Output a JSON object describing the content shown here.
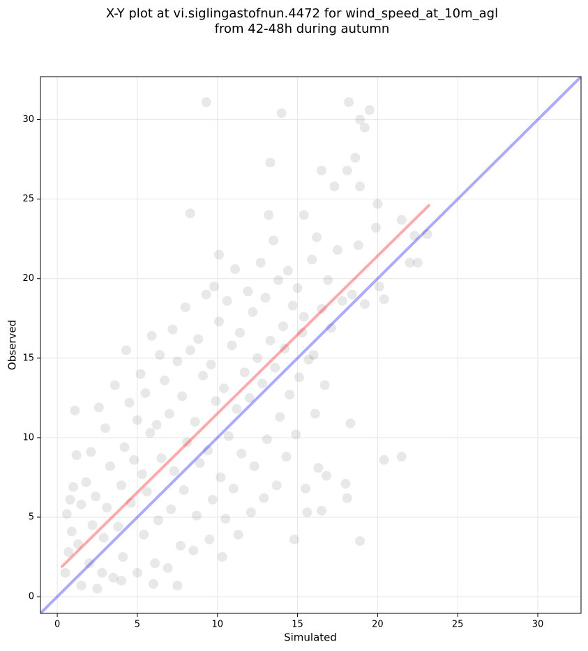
{
  "chart_data": {
    "type": "scatter",
    "title": [
      "X-Y plot at vi.siglingastofnun.4472 for wind_speed_at_10m_agl",
      "from 42-48h during autumn"
    ],
    "xlabel": "Simulated",
    "ylabel": "Observed",
    "xlim": [
      -1.05,
      32.7
    ],
    "ylim": [
      -1.05,
      32.7
    ],
    "xticks": [
      0,
      5,
      10,
      15,
      20,
      25,
      30
    ],
    "yticks": [
      0,
      5,
      10,
      15,
      20,
      25,
      30
    ],
    "grid": true,
    "series": [
      {
        "color": "#000000",
        "x": [
          9.3,
          14,
          18.2,
          19.5,
          18.9,
          19.2,
          13.3,
          16.5,
          18.1,
          18.6,
          17.3,
          18.9,
          8.3,
          13.2,
          15.4,
          20,
          21.5,
          22.3,
          23.1,
          22,
          22.5,
          20.4,
          20.4,
          21.5,
          18.9,
          14.8,
          18.3,
          18,
          18.1,
          1.1,
          4.3,
          10.1,
          0.5,
          0.7,
          0.9,
          0.6,
          0.8,
          1.0,
          1.3,
          1.5,
          1.2,
          1.8,
          2.0,
          2.2,
          2.4,
          2.1,
          2.6,
          2.9,
          3.1,
          3.3,
          3.0,
          3.6,
          3.5,
          3.8,
          4.0,
          4.2,
          4.5,
          4.1,
          4.6,
          4.8,
          5.0,
          5.2,
          5.0,
          5.4,
          5.6,
          5.3,
          5.8,
          5.5,
          5.9,
          6.1,
          6.3,
          6.5,
          6.2,
          6.7,
          6.4,
          6.9,
          7.1,
          7.3,
          7.0,
          7.5,
          7.2,
          7.7,
          7.9,
          8.1,
          7.8,
          8.3,
          8.0,
          8.5,
          8.7,
          8.9,
          8.6,
          9.1,
          8.8,
          9.3,
          9.5,
          9.7,
          9.4,
          9.9,
          9.6,
          10.1,
          9.8,
          10.3,
          10.5,
          10.2,
          10.7,
          10.4,
          10.9,
          10.6,
          11.1,
          11.3,
          11.0,
          11.5,
          11.2,
          11.7,
          11.4,
          11.9,
          12.1,
          12.3,
          12.0,
          12.5,
          12.2,
          12.7,
          12.9,
          13.1,
          12.8,
          13.3,
          13.0,
          13.5,
          13.7,
          13.9,
          13.6,
          14.1,
          13.8,
          14.3,
          14.5,
          14.2,
          14.7,
          14.4,
          14.9,
          15.1,
          15.3,
          15.0,
          15.5,
          15.7,
          15.4,
          15.9,
          16.1,
          16.3,
          16.0,
          16.5,
          16.2,
          16.7,
          16.9,
          17.1,
          17.5,
          17.8,
          18.4,
          18.8,
          19.2,
          19.9,
          20.1,
          16.5,
          16.8,
          15.6,
          6.0,
          7.5,
          2.5,
          4.0,
          1.5,
          2.8
        ],
        "values": [
          31.1,
          30.4,
          31.1,
          30.6,
          30,
          29.5,
          27.3,
          26.8,
          26.8,
          27.6,
          25.8,
          25.8,
          24.1,
          24,
          24,
          24.7,
          23.7,
          22.7,
          22.8,
          21,
          21,
          18.7,
          8.6,
          8.8,
          3.5,
          3.6,
          10.9,
          7.1,
          6.2,
          11.7,
          15.5,
          21.5,
          1.5,
          2.8,
          4.1,
          5.2,
          6.1,
          6.9,
          3.3,
          5.8,
          8.9,
          7.2,
          2.1,
          4.5,
          6.3,
          9.1,
          11.9,
          3.7,
          5.6,
          8.2,
          10.6,
          13.3,
          1.2,
          4.4,
          7.0,
          9.4,
          12.2,
          2.5,
          5.9,
          8.6,
          11.1,
          14.0,
          1.5,
          3.9,
          6.6,
          7.7,
          10.3,
          12.8,
          16.4,
          2.1,
          4.8,
          8.7,
          10.8,
          13.6,
          15.2,
          1.8,
          5.5,
          7.9,
          11.5,
          14.8,
          16.8,
          3.2,
          6.7,
          9.7,
          12.6,
          15.5,
          18.2,
          2.9,
          5.1,
          8.4,
          11.0,
          13.9,
          16.2,
          19.0,
          3.6,
          6.1,
          9.2,
          12.3,
          14.6,
          17.3,
          19.5,
          2.5,
          4.9,
          7.5,
          10.1,
          13.1,
          15.8,
          18.6,
          20.6,
          3.9,
          6.8,
          9.0,
          11.8,
          14.1,
          16.6,
          19.2,
          5.3,
          8.2,
          12.5,
          15.0,
          17.9,
          21.0,
          6.2,
          9.9,
          13.4,
          16.1,
          18.8,
          22.4,
          7.0,
          11.3,
          14.4,
          17.0,
          19.9,
          8.8,
          12.7,
          15.6,
          18.3,
          20.5,
          10.2,
          13.8,
          16.6,
          19.4,
          6.8,
          14.9,
          17.6,
          21.2,
          11.5,
          8.1,
          15.2,
          18.1,
          22.6,
          13.3,
          19.9,
          16.9,
          21.8,
          18.6,
          19.0,
          22.1,
          18.4,
          23.2,
          19.5,
          5.4,
          7.6,
          5.3,
          0.8,
          0.7,
          0.5,
          1.0,
          0.7,
          1.5
        ]
      }
    ],
    "lines": [
      {
        "color": "#0000ff",
        "x": [
          -1.05,
          32.7
        ],
        "y": [
          -1.05,
          32.7
        ]
      },
      {
        "color": "#ff0000",
        "x": [
          0.3,
          23.2
        ],
        "y": [
          1.9,
          24.6
        ]
      }
    ]
  }
}
